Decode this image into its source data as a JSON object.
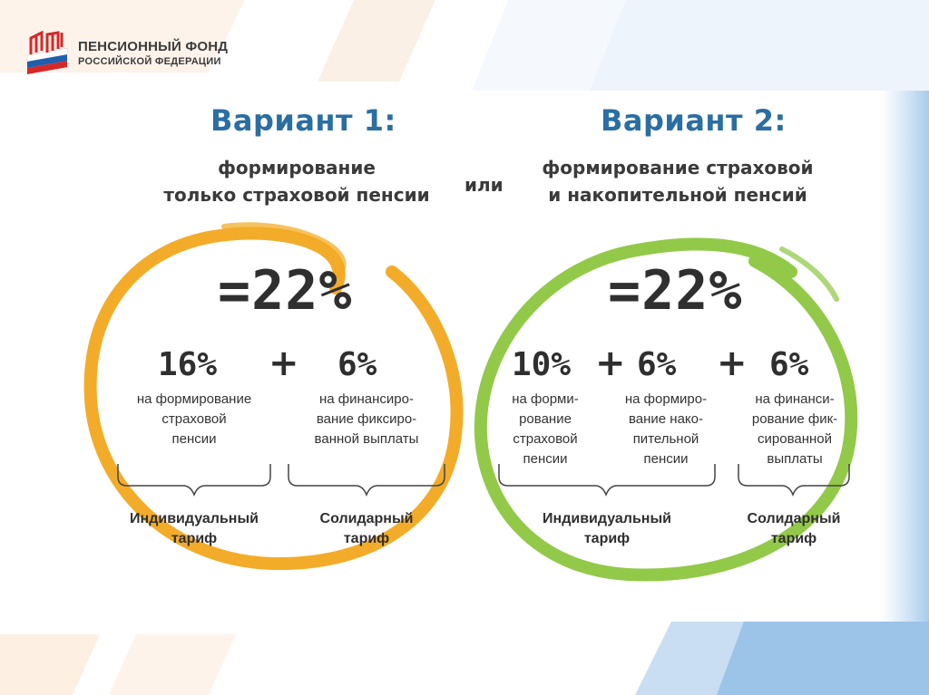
{
  "logo": {
    "line1": "ПЕНСИОННЫЙ ФОНД",
    "line2": "РОССИЙСКОЙ ФЕДЕРАЦИИ",
    "flag_colors": [
      "#ffffff",
      "#1f5fb0",
      "#d62828"
    ],
    "mark_color": "#d62828",
    "icon": "pfr-logo-icon"
  },
  "colors": {
    "title_blue": "#2a6ea3",
    "variant1_circle": "#f2a81d",
    "variant2_circle": "#8cc63f",
    "text_dark": "#2f2f2f"
  },
  "variant1": {
    "title": "Вариант 1:",
    "subtitle_line1": "формирование",
    "subtitle_line2": "только страховой пенсии",
    "total": "=22%",
    "parts": [
      {
        "pct": "16%",
        "desc": [
          "на формирование",
          "страховой",
          "пенсии"
        ]
      },
      {
        "pct": "6%",
        "desc": [
          "на финансиро-",
          "вание фиксиро-",
          "ванной выплаты"
        ]
      }
    ],
    "plus": "+",
    "tariffs": [
      {
        "line1": "Индивидуальный",
        "line2": "тариф"
      },
      {
        "line1": "Солидарный",
        "line2": "тариф"
      }
    ]
  },
  "or_word": "или",
  "variant2": {
    "title": "Вариант 2:",
    "subtitle_line1": "формирование страховой",
    "subtitle_line2": "и накопительной пенсий",
    "total": "=22%",
    "parts": [
      {
        "pct": "10%",
        "desc": [
          "на форми-",
          "рование",
          "страховой",
          "пенсии"
        ]
      },
      {
        "pct": "6%",
        "desc": [
          "на формиро-",
          "вание нако-",
          "пительной",
          "пенсии"
        ]
      },
      {
        "pct": "6%",
        "desc": [
          "на финанси-",
          "рование фик-",
          "сированной",
          "выплаты"
        ]
      }
    ],
    "plus": "+",
    "tariffs": [
      {
        "line1": "Индивидуальный",
        "line2": "тариф"
      },
      {
        "line1": "Солидарный",
        "line2": "тариф"
      }
    ]
  }
}
